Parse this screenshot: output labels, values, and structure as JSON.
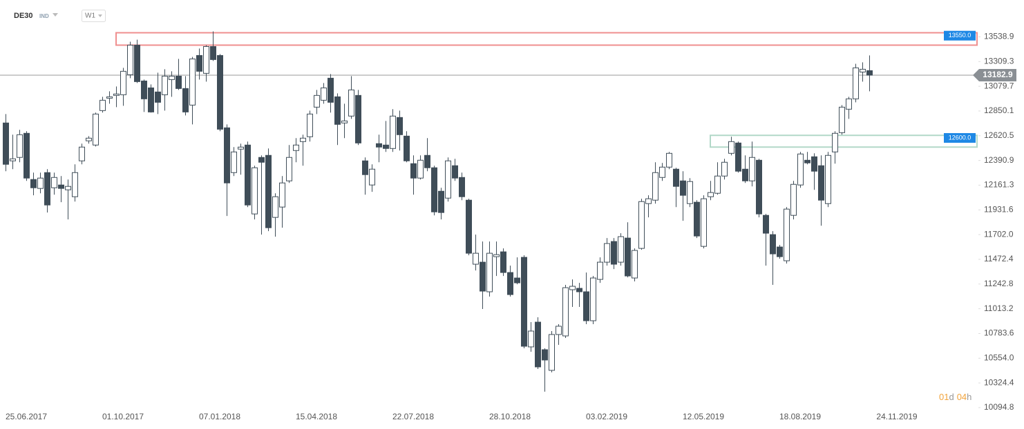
{
  "header": {
    "symbol": "DE30",
    "kind": "IND",
    "interval": "W1"
  },
  "countdown": [
    "01",
    "d",
    "04",
    "h"
  ],
  "chart_data": {
    "type": "candlestick",
    "categories": [
      null,
      null,
      null,
      "25.06.2017",
      null,
      null,
      null,
      null,
      null,
      null,
      null,
      null,
      null,
      null,
      null,
      null,
      null,
      "01.10.2017",
      null,
      null,
      null,
      null,
      null,
      null,
      null,
      null,
      null,
      null,
      null,
      null,
      null,
      "07.01.2018",
      null,
      null,
      null,
      null,
      null,
      null,
      null,
      null,
      null,
      null,
      null,
      null,
      null,
      "15.04.2018",
      null,
      null,
      null,
      null,
      null,
      null,
      null,
      null,
      null,
      null,
      null,
      null,
      null,
      "22.07.2018",
      null,
      null,
      null,
      null,
      null,
      null,
      null,
      null,
      null,
      null,
      null,
      null,
      null,
      "28.10.2018",
      null,
      null,
      null,
      null,
      null,
      null,
      null,
      null,
      null,
      null,
      null,
      null,
      null,
      "03.02.2019",
      null,
      null,
      null,
      null,
      null,
      null,
      null,
      null,
      null,
      null,
      null,
      null,
      null,
      "12.05.2019",
      null,
      null,
      null,
      null,
      null,
      null,
      null,
      null,
      null,
      null,
      null,
      null,
      null,
      "18.08.2019",
      null,
      null,
      null,
      null,
      null,
      null,
      null,
      null,
      null,
      null,
      null,
      null,
      null,
      "24.11.2019"
    ],
    "open": [
      12739,
      12387,
      12419,
      12643,
      12214,
      12131,
      12278,
      12137,
      12163,
      12118,
      12054,
      12387,
      12573,
      12534,
      12854,
      12969,
      12995,
      13001,
      13187,
      13462,
      13129,
      13065,
      13027,
      13001,
      13142,
      13174,
      13059,
      12905,
      13366,
      13200,
      13449,
      13366,
      12694,
      12278,
      12496,
      12534,
      11894,
      12419,
      12438,
      11862,
      11958,
      12201,
      12483,
      12566,
      12611,
      12886,
      12950,
      13155,
      12982,
      12739,
      12803,
      12995,
      12387,
      12163,
      12547,
      12534,
      12502,
      12790,
      12617,
      12361,
      12227,
      12438,
      12323,
      12105,
      12041,
      12342,
      12233,
      12022,
      11427,
      11446,
      11171,
      11497,
      11542,
      11350,
      11299,
      11491,
      10659,
      10889,
      10633,
      10441,
      10774,
      10761,
      11190,
      11203,
      11171,
      10902,
      11286,
      11446,
      11638,
      11446,
      11670,
      11299,
      11574,
      11990,
      12022,
      12233,
      12329,
      12310,
      12201,
      11990,
      12003,
      11593,
      12054,
      12086,
      12246,
      12457,
      12553,
      12310,
      12201,
      12393,
      11881,
      11702,
      11587,
      11459,
      11881,
      12163,
      12393,
      12425,
      12342,
      11990,
      12470,
      12649,
      12867,
      12963,
      13212,
      13225,
      null,
      null,
      null,
      null
    ],
    "high": [
      12822,
      12630,
      12675,
      12662,
      12278,
      12278,
      12310,
      12278,
      12246,
      12214,
      12355,
      12547,
      12617,
      12835,
      12982,
      13033,
      13078,
      13251,
      13494,
      13513,
      13142,
      13097,
      13206,
      13238,
      13219,
      13334,
      13174,
      13353,
      13430,
      13462,
      13590,
      13379,
      12726,
      12515,
      12547,
      12566,
      12342,
      12438,
      12502,
      12086,
      12246,
      12534,
      12598,
      12630,
      12854,
      13046,
      13110,
      13193,
      13014,
      12918,
      13174,
      13046,
      12419,
      12355,
      12630,
      12758,
      12867,
      12854,
      12662,
      12438,
      12438,
      12598,
      12342,
      12137,
      12419,
      12406,
      12278,
      12035,
      11702,
      11638,
      11638,
      11638,
      11574,
      11414,
      11491,
      11510,
      10889,
      10934,
      10646,
      10806,
      10870,
      11235,
      11286,
      11254,
      11350,
      11318,
      11491,
      11670,
      11670,
      11715,
      11817,
      11574,
      12035,
      12067,
      12374,
      12368,
      12470,
      12323,
      12291,
      12227,
      12022,
      12067,
      12201,
      12374,
      12406,
      12611,
      12566,
      12438,
      12566,
      12406,
      11894,
      11734,
      11606,
      11958,
      12201,
      12470,
      12470,
      12457,
      12438,
      12470,
      12662,
      12905,
      12982,
      13289,
      13302,
      13366,
      null,
      null,
      null,
      null
    ],
    "low": [
      12291,
      12310,
      12374,
      12201,
      12067,
      12086,
      11907,
      12073,
      12003,
      11843,
      12009,
      12355,
      12547,
      12521,
      12835,
      12918,
      12886,
      12899,
      13155,
      13110,
      12841,
      12835,
      12822,
      12854,
      12982,
      13046,
      12809,
      12726,
      13142,
      13123,
      13315,
      12662,
      11875,
      12246,
      12259,
      11958,
      11843,
      11702,
      11734,
      11683,
      11766,
      12182,
      12374,
      12342,
      12566,
      12822,
      12918,
      12835,
      12534,
      12598,
      12777,
      12534,
      12073,
      12099,
      12374,
      12470,
      12470,
      12483,
      12374,
      12073,
      12214,
      12291,
      11881,
      11843,
      12009,
      12201,
      12022,
      11510,
      11369,
      11011,
      11126,
      11318,
      11318,
      11126,
      11241,
      10646,
      10614,
      10454,
      10243,
      10422,
      10678,
      10742,
      11030,
      11030,
      10870,
      10870,
      11254,
      11414,
      11382,
      11414,
      11305,
      11267,
      11561,
      11862,
      11990,
      12201,
      12310,
      11958,
      11830,
      11958,
      11670,
      11574,
      12022,
      12073,
      12214,
      12438,
      12278,
      12182,
      12150,
      11862,
      11414,
      11235,
      11478,
      11433,
      11843,
      12137,
      12355,
      12118,
      11785,
      11958,
      12361,
      12630,
      12777,
      12931,
      13123,
      13033,
      null,
      null,
      null,
      null
    ],
    "close": [
      12355,
      12406,
      12630,
      12227,
      12137,
      12227,
      11977,
      12233,
      12131,
      12150,
      12278,
      12515,
      12598,
      12822,
      12950,
      12982,
      13008,
      13219,
      13462,
      13123,
      12963,
      12841,
      12931,
      13174,
      13174,
      13059,
      12841,
      13334,
      13219,
      13449,
      13328,
      12681,
      12182,
      12470,
      12515,
      11977,
      12323,
      12374,
      11766,
      12054,
      12182,
      12419,
      12534,
      12598,
      12822,
      12995,
      13065,
      12931,
      12726,
      12758,
      13046,
      12553,
      12259,
      12310,
      12515,
      12502,
      12803,
      12630,
      12387,
      12227,
      12393,
      12323,
      11913,
      11907,
      12387,
      12227,
      12054,
      11529,
      11529,
      11177,
      11529,
      11516,
      11350,
      11145,
      11254,
      10665,
      10806,
      10473,
      10537,
      10774,
      10851,
      11209,
      11222,
      11171,
      10902,
      11299,
      11446,
      11619,
      11427,
      11683,
      11318,
      11555,
      12009,
      12035,
      12278,
      12329,
      12457,
      12150,
      12067,
      12195,
      11689,
      12035,
      12093,
      12246,
      12374,
      12566,
      12291,
      12201,
      12419,
      11894,
      11715,
      11523,
      11497,
      11939,
      12169,
      12451,
      12368,
      12291,
      12022,
      12438,
      12643,
      12886,
      12963,
      13251,
      13238,
      13182.9,
      null,
      null,
      null,
      null
    ],
    "up_color": "#ffffff",
    "down_color": "#3f4d58",
    "edge_color": "#3f4d58",
    "current_price": 13182.9,
    "zones": [
      {
        "value": 13550,
        "label": "13550.0",
        "high": 13577,
        "low": 13462,
        "color": "#ef8f8f"
      },
      {
        "value": 12600,
        "label": "12600.0",
        "high": 12624,
        "low": 12515,
        "color": "#b2d8c8"
      }
    ],
    "ylim": [
      10050,
      13625
    ],
    "yticks": [
      13538.9,
      13309.3,
      13079.7,
      12850.1,
      12620.5,
      12390.9,
      12161.3,
      11931.6,
      {
        "value": 11702,
        "label": "11702.0"
      },
      11472.4,
      11242.8,
      11013.2,
      10783.6,
      {
        "value": 10554,
        "label": "10554.0"
      },
      10324.4,
      10094.8
    ]
  }
}
